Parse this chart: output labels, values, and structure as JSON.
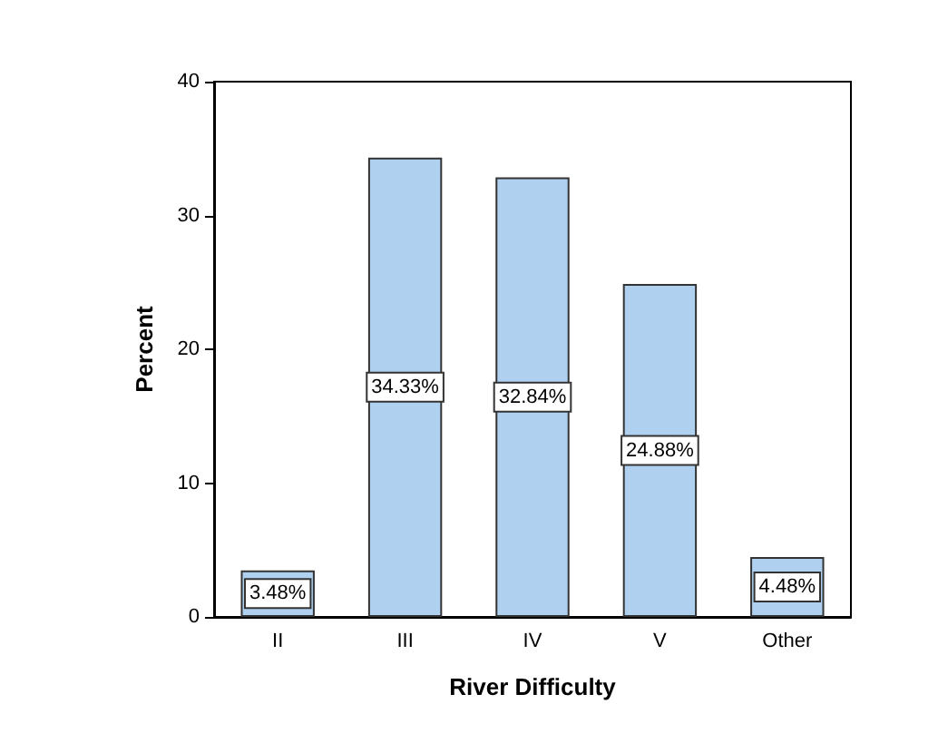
{
  "chart_data": {
    "type": "bar",
    "xlabel": "River Difficulty",
    "ylabel": "Percent",
    "categories": [
      "II",
      "III",
      "IV",
      "V",
      "Other"
    ],
    "values": [
      3.48,
      34.33,
      32.84,
      24.88,
      4.48
    ],
    "value_labels": [
      "3.48%",
      "34.33%",
      "32.84%",
      "24.88%",
      "4.48%"
    ],
    "color": "#b0d0f0",
    "ylim": [
      0,
      40
    ],
    "yticks": [
      0,
      10,
      20,
      30,
      40
    ],
    "grid": false
  }
}
